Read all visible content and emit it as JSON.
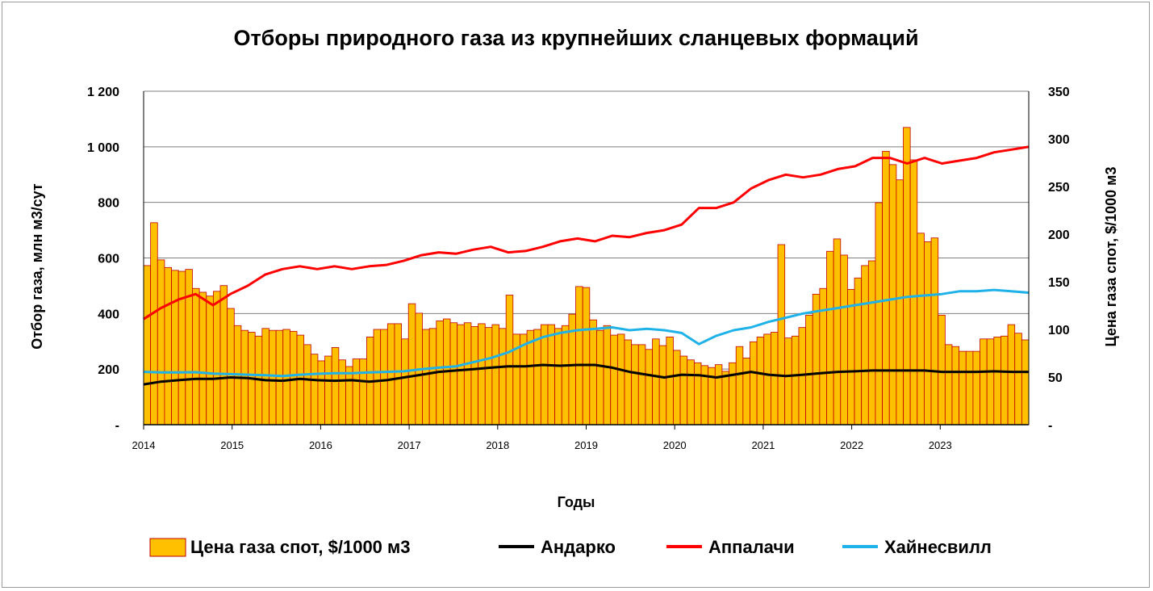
{
  "chart_data": {
    "type": "bar",
    "title": "Отборы природного газа из крупнейших сланцевых формаций",
    "xlabel": "Годы",
    "ylabel": "Отбор газа, млн м3/сут",
    "y2label": "Цена газа спот, $/1000 м3",
    "ylim": [
      0,
      1200
    ],
    "y2lim": [
      0,
      350
    ],
    "yticks": [
      "-",
      "200",
      "400",
      "600",
      "800",
      "1 000",
      "1 200"
    ],
    "y2ticks": [
      "-",
      "50",
      "100",
      "150",
      "200",
      "250",
      "300",
      "350"
    ],
    "xticks": [
      "2014",
      "2015",
      "2016",
      "2017",
      "2018",
      "2019",
      "2020",
      "2021",
      "2022",
      "2023"
    ],
    "x_start": 2014,
    "x_end": 2024,
    "grid": true,
    "legend_position": "bottom",
    "series": [
      {
        "name": "Цена газа спот, $/1000 м3",
        "type": "bar",
        "axis": "right",
        "color": "#FFC000",
        "edge_color": "#C00000",
        "values": [
          167,
          212,
          173,
          165,
          162,
          161,
          163,
          143,
          139,
          135,
          140,
          146,
          122,
          104,
          99,
          97,
          93,
          101,
          99,
          99,
          100,
          98,
          94,
          84,
          74,
          67,
          72,
          81,
          68,
          61,
          69,
          69,
          92,
          100,
          100,
          106,
          106,
          90,
          127,
          117,
          100,
          101,
          109,
          111,
          107,
          105,
          107,
          103,
          106,
          102,
          105,
          101,
          136,
          95,
          95,
          99,
          100,
          105,
          105,
          101,
          104,
          116,
          145,
          144,
          110,
          99,
          104,
          94,
          95,
          89,
          84,
          84,
          79,
          90,
          83,
          92,
          78,
          72,
          68,
          65,
          62,
          60,
          63,
          56,
          65,
          82,
          70,
          87,
          92,
          95,
          97,
          189,
          91,
          93,
          102,
          115,
          137,
          143,
          182,
          195,
          178,
          142,
          154,
          167,
          172,
          233,
          287,
          273,
          257,
          312,
          278,
          201,
          192,
          196,
          115,
          84,
          82,
          77,
          77,
          77,
          90,
          90,
          92,
          93,
          105,
          96,
          89
        ],
        "width_months": 1
      },
      {
        "name": "Андарко",
        "type": "line",
        "axis": "left",
        "color": "#000000",
        "values": [
          145,
          155,
          160,
          165,
          165,
          170,
          168,
          160,
          158,
          165,
          160,
          158,
          160,
          155,
          160,
          170,
          180,
          190,
          195,
          200,
          205,
          210,
          210,
          215,
          212,
          215,
          215,
          205,
          190,
          180,
          170,
          180,
          178,
          170,
          180,
          190,
          180,
          175,
          180,
          185,
          190,
          192,
          195,
          195,
          195,
          195,
          190,
          190,
          190,
          192,
          190,
          190
        ]
      },
      {
        "name": "Аппалачи",
        "type": "line",
        "axis": "left",
        "color": "#FF0000",
        "values": [
          380,
          420,
          450,
          470,
          430,
          470,
          500,
          540,
          560,
          570,
          560,
          570,
          560,
          570,
          575,
          590,
          610,
          620,
          615,
          630,
          640,
          620,
          625,
          640,
          660,
          670,
          660,
          680,
          675,
          690,
          700,
          720,
          780,
          780,
          800,
          850,
          880,
          900,
          890,
          900,
          920,
          930,
          960,
          960,
          940,
          960,
          940,
          950,
          960,
          980,
          990,
          1000
        ]
      },
      {
        "name": "Хайнесвилл",
        "type": "line",
        "axis": "left",
        "color": "#1FB2E8",
        "values": [
          190,
          188,
          188,
          189,
          184,
          182,
          180,
          178,
          175,
          180,
          183,
          185,
          185,
          188,
          190,
          192,
          200,
          205,
          210,
          225,
          240,
          260,
          290,
          315,
          330,
          340,
          345,
          350,
          340,
          345,
          340,
          330,
          290,
          320,
          340,
          350,
          370,
          385,
          400,
          410,
          420,
          430,
          440,
          450,
          460,
          465,
          470,
          480,
          480,
          485,
          480,
          475
        ]
      }
    ]
  },
  "legend": [
    {
      "label": "Цена газа спот, $/1000 м3",
      "color": "#FFC000",
      "kind": "bar"
    },
    {
      "label": "Андарко",
      "color": "#000000",
      "kind": "line"
    },
    {
      "label": "Аппалачи",
      "color": "#FF0000",
      "kind": "line"
    },
    {
      "label": "Хайнесвилл",
      "color": "#1FB2E8",
      "kind": "line"
    }
  ]
}
